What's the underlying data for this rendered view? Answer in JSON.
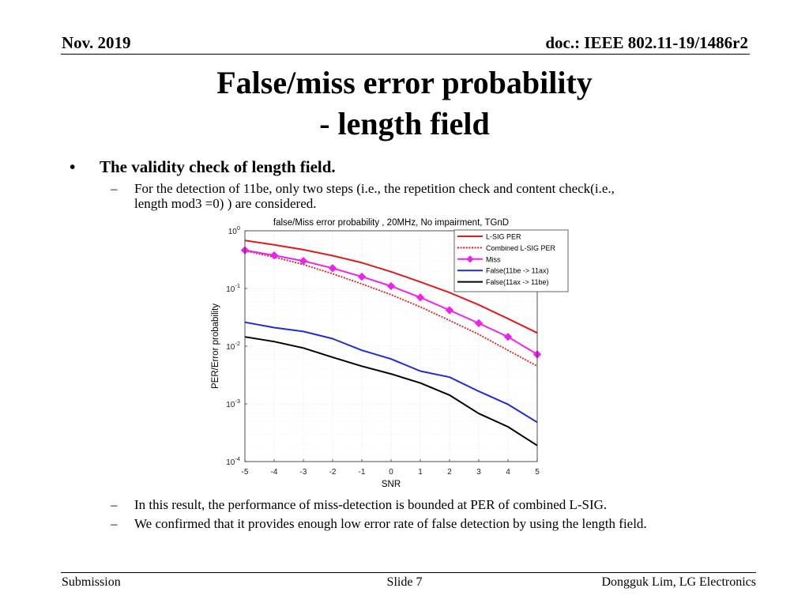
{
  "header": {
    "date": "Nov. 2019",
    "doc": "doc.: IEEE 802.11-19/1486r2"
  },
  "title": {
    "line1": "False/miss error probability",
    "line2": "- length field"
  },
  "bullet": {
    "marker": "•",
    "text": "The validity check of length field.",
    "dash": "–",
    "sub_line1": "For the detection of 11be, only two steps (i.e., the repetition check and content check(i.e.,",
    "sub_line2": "length mod3 =0) ) are considered."
  },
  "conclusions": [
    "In this result, the performance of miss-detection is bounded at PER of combined L-SIG.",
    "We confirmed that it provides enough low error rate of false detection by using the length field."
  ],
  "footer": {
    "left": "Submission",
    "center": "Slide 7",
    "right": "Dongguk Lim, LG Electronics"
  },
  "chart_data": {
    "type": "line",
    "title": "false/Miss error probability , 20MHz, No impairment, TGnD",
    "xlabel": "SNR",
    "ylabel": "PER/Error probability",
    "yscale": "log",
    "xlim": [
      -5,
      5
    ],
    "ylim": [
      0.0001,
      1
    ],
    "x": [
      -5,
      -4,
      -3,
      -2,
      -1,
      0,
      1,
      2,
      3,
      4,
      5
    ],
    "x_ticks": [
      "-5",
      "-4",
      "-3",
      "-2",
      "-1",
      "0",
      "1",
      "2",
      "3",
      "4",
      "5"
    ],
    "y_ticks": [
      {
        "value": 1,
        "base": "10",
        "exp": "0"
      },
      {
        "value": 0.1,
        "base": "10",
        "exp": "-1"
      },
      {
        "value": 0.01,
        "base": "10",
        "exp": "-2"
      },
      {
        "value": 0.001,
        "base": "10",
        "exp": "-3"
      },
      {
        "value": 0.0001,
        "base": "10",
        "exp": "-4"
      }
    ],
    "grid": true,
    "legend_position": "top-right",
    "series": [
      {
        "name": "L-SIG PER",
        "color": "#e31a1c",
        "style": "solid",
        "marker": "none",
        "values": [
          0.68,
          0.57,
          0.47,
          0.37,
          0.28,
          0.195,
          0.13,
          0.085,
          0.052,
          0.03,
          0.017
        ]
      },
      {
        "name": "Combined L-SIG PER",
        "color": "#e31a1c",
        "style": "dotted",
        "marker": "none",
        "values": [
          0.45,
          0.35,
          0.26,
          0.18,
          0.12,
          0.078,
          0.048,
          0.028,
          0.016,
          0.0085,
          0.0045
        ]
      },
      {
        "name": " Miss",
        "color": "#ee22ee",
        "style": "solid",
        "marker": "diamond",
        "values": [
          0.46,
          0.375,
          0.3,
          0.225,
          0.16,
          0.11,
          0.07,
          0.042,
          0.025,
          0.0145,
          0.0072
        ]
      },
      {
        "name": "False(11be -> 11ax)",
        "color": "#1f2bd8",
        "style": "solid",
        "marker": "none",
        "values": [
          0.026,
          0.021,
          0.018,
          0.0135,
          0.0085,
          0.006,
          0.0037,
          0.0029,
          0.00165,
          0.00098,
          0.00048
        ]
      },
      {
        "name": "False(11ax -> 11be)",
        "color": "#000000",
        "style": "solid",
        "marker": "none",
        "values": [
          0.0145,
          0.012,
          0.0093,
          0.0064,
          0.0045,
          0.0033,
          0.0023,
          0.00142,
          0.00068,
          0.0004,
          0.00019
        ]
      }
    ]
  }
}
